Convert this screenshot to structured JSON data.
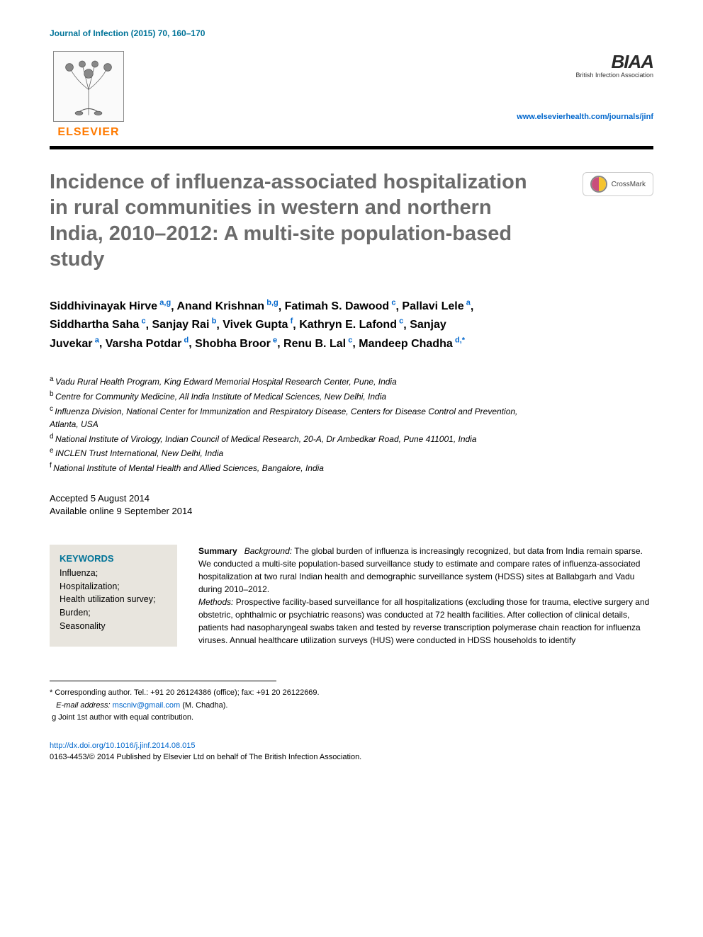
{
  "journal_header": "Journal of Infection (2015) 70, 160–170",
  "publisher": {
    "name": "ELSEVIER",
    "association_logo": "BIAA",
    "association_sub": "British Infection Association",
    "journal_url": "www.elsevierhealth.com/journals/jinf"
  },
  "crossmark_label": "CrossMark",
  "title": "Incidence of influenza-associated hospitalization in rural communities in western and northern India, 2010–2012: A multi-site population-based study",
  "authors": [
    {
      "name": "Siddhivinayak Hirve",
      "aff": "a,g"
    },
    {
      "name": "Anand Krishnan",
      "aff": "b,g"
    },
    {
      "name": "Fatimah S. Dawood",
      "aff": "c"
    },
    {
      "name": "Pallavi Lele",
      "aff": "a"
    },
    {
      "name": "Siddhartha Saha",
      "aff": "c"
    },
    {
      "name": "Sanjay Rai",
      "aff": "b"
    },
    {
      "name": "Vivek Gupta",
      "aff": "f"
    },
    {
      "name": "Kathryn E. Lafond",
      "aff": "c"
    },
    {
      "name": "Sanjay Juvekar",
      "aff": "a"
    },
    {
      "name": "Varsha Potdar",
      "aff": "d"
    },
    {
      "name": "Shobha Broor",
      "aff": "e"
    },
    {
      "name": "Renu B. Lal",
      "aff": "c"
    },
    {
      "name": "Mandeep Chadha",
      "aff": "d,*"
    }
  ],
  "affiliations": {
    "a": "Vadu Rural Health Program, King Edward Memorial Hospital Research Center, Pune, India",
    "b": "Centre for Community Medicine, All India Institute of Medical Sciences, New Delhi, India",
    "c": "Influenza Division, National Center for Immunization and Respiratory Disease, Centers for Disease Control and Prevention, Atlanta, USA",
    "d": "National Institute of Virology, Indian Council of Medical Research, 20-A, Dr Ambedkar Road, Pune 411001, India",
    "e": "INCLEN Trust International, New Delhi, India",
    "f": "National Institute of Mental Health and Allied Sciences, Bangalore, India"
  },
  "dates": {
    "accepted": "Accepted 5 August 2014",
    "online": "Available online 9 September 2014"
  },
  "keywords_heading": "KEYWORDS",
  "keywords": "Influenza;\nHospitalization;\nHealth utilization survey;\nBurden;\nSeasonality",
  "summary": {
    "label": "Summary",
    "background_label": "Background:",
    "background_text": " The global burden of influenza is increasingly recognized, but data from India remain sparse. We conducted a multi-site population-based surveillance study to estimate and compare rates of influenza-associated hospitalization at two rural Indian health and demographic surveillance system (HDSS) sites at Ballabgarh and Vadu during 2010–2012.",
    "methods_label": "Methods:",
    "methods_text": " Prospective facility-based surveillance for all hospitalizations (excluding those for trauma, elective surgery and obstetric, ophthalmic or psychiatric reasons) was conducted at 72 health facilities. After collection of clinical details, patients had nasopharyngeal swabs taken and tested by reverse transcription polymerase chain reaction for influenza viruses. Annual healthcare utilization surveys (HUS) were conducted in HDSS households to identify"
  },
  "footnotes": {
    "corresponding": "* Corresponding author. Tel.: +91 20 26124386 (office); fax: +91 20 26122669.",
    "email_label": "E-mail address:",
    "email": "mscniv@gmail.com",
    "email_person": "(M. Chadha).",
    "joint": "g Joint 1st author with equal contribution."
  },
  "doi": {
    "url": "http://dx.doi.org/10.1016/j.jinf.2014.08.015",
    "copyright": "0163-4453/© 2014 Published by Elsevier Ltd on behalf of The British Infection Association."
  },
  "colors": {
    "teal": "#007398",
    "orange": "#ff7a00",
    "link": "#0066cc",
    "title_grey": "#6b6b6b",
    "keywords_bg": "#e8e5de"
  }
}
